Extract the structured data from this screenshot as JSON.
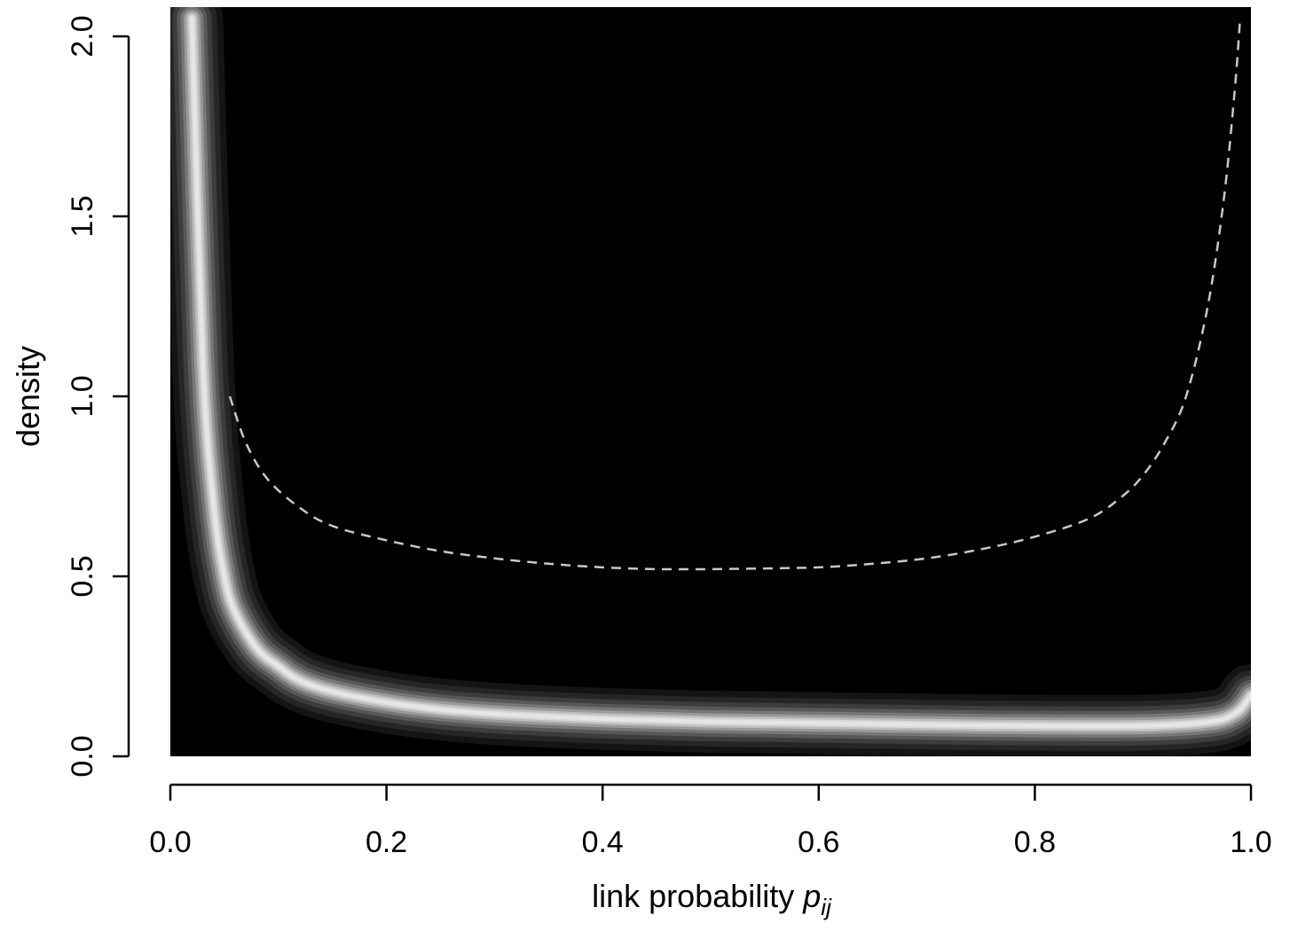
{
  "chart_data": {
    "type": "area",
    "title": "",
    "xlabel": "link probability",
    "xlabel_symbol": "p",
    "xlabel_subscript": "ij",
    "ylabel": "density",
    "xlim": [
      0.0,
      1.0
    ],
    "ylim": [
      0.0,
      2.0
    ],
    "x_ticks": [
      "0.0",
      "0.2",
      "0.4",
      "0.6",
      "0.8",
      "1.0"
    ],
    "y_ticks": [
      "0.0",
      "0.5",
      "1.0",
      "1.5",
      "2.0"
    ],
    "grid": false,
    "legend": "none",
    "colors": {
      "background": "#000000",
      "band": "#e6e6e6",
      "dashed_line": "#c8c8c8"
    },
    "series": [
      {
        "style": "shaded-band",
        "x": [
          0.02,
          0.03,
          0.04,
          0.05,
          0.06,
          0.08,
          0.1,
          0.12,
          0.15,
          0.2,
          0.25,
          0.3,
          0.35,
          0.4,
          0.45,
          0.5,
          0.55,
          0.6,
          0.65,
          0.7,
          0.75,
          0.8,
          0.85,
          0.9,
          0.93,
          0.95,
          0.97,
          0.98,
          0.99,
          1.0
        ],
        "y": [
          2.05,
          1.1,
          0.7,
          0.5,
          0.4,
          0.3,
          0.25,
          0.21,
          0.18,
          0.15,
          0.13,
          0.118,
          0.11,
          0.104,
          0.1,
          0.096,
          0.094,
          0.092,
          0.09,
          0.088,
          0.086,
          0.085,
          0.084,
          0.085,
          0.088,
          0.092,
          0.1,
          0.11,
          0.13,
          0.17
        ]
      },
      {
        "style": "dashed-line",
        "x": [
          0.055,
          0.07,
          0.09,
          0.12,
          0.15,
          0.2,
          0.25,
          0.3,
          0.35,
          0.4,
          0.45,
          0.5,
          0.55,
          0.6,
          0.65,
          0.7,
          0.75,
          0.8,
          0.85,
          0.88,
          0.9,
          0.92,
          0.94,
          0.96,
          0.975,
          0.985,
          0.99
        ],
        "y": [
          1.0,
          0.87,
          0.77,
          0.69,
          0.64,
          0.6,
          0.57,
          0.55,
          0.535,
          0.525,
          0.52,
          0.52,
          0.522,
          0.525,
          0.535,
          0.55,
          0.575,
          0.61,
          0.66,
          0.72,
          0.78,
          0.87,
          1.0,
          1.25,
          1.55,
          1.85,
          2.05
        ]
      }
    ]
  }
}
